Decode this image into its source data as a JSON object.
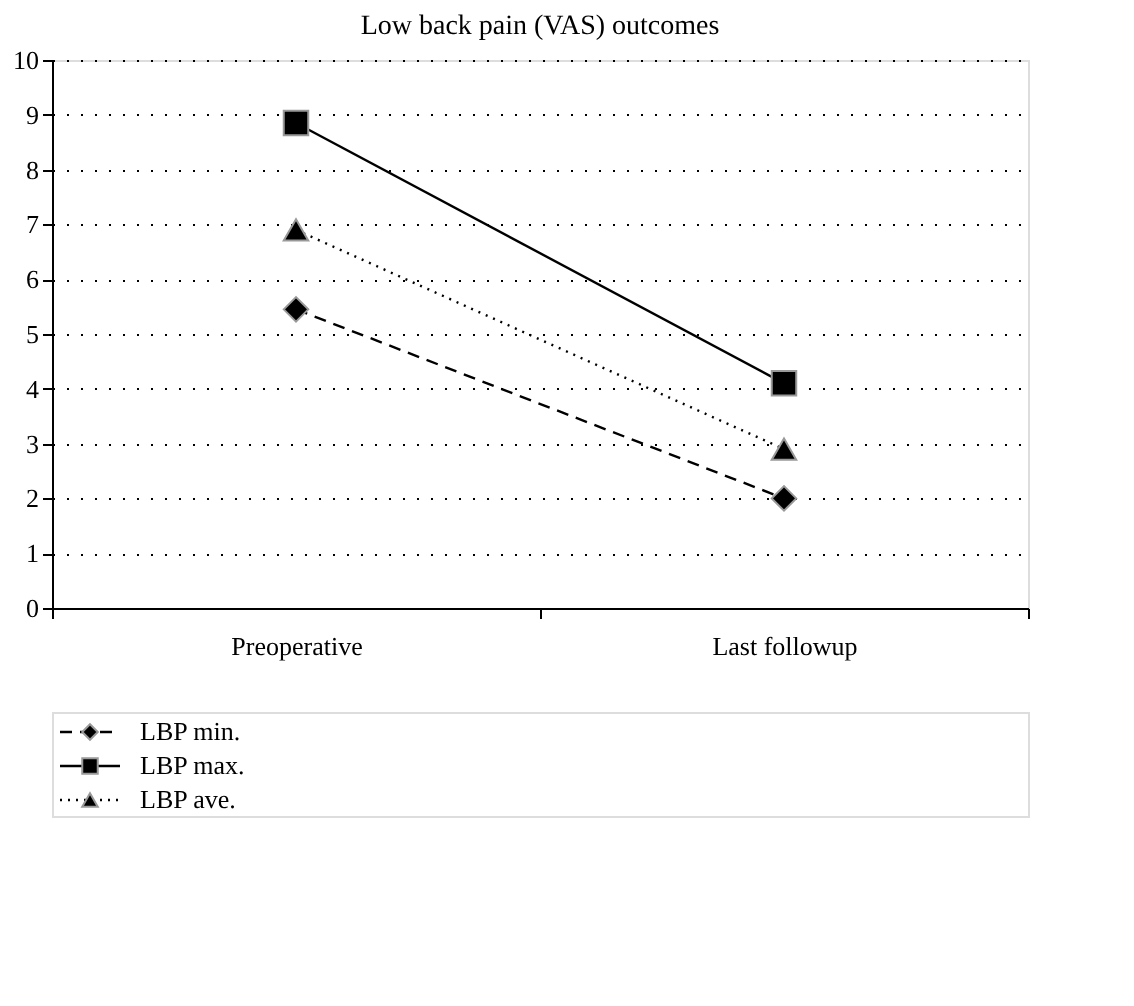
{
  "chart_data": {
    "type": "line",
    "title": "Low back pain (VAS) outcomes",
    "categories": [
      "Preoperative",
      "Last followup"
    ],
    "series": [
      {
        "name": "LBP min.",
        "color": "#000000",
        "values": [
          5.45,
          2.0
        ],
        "marker": "diamond",
        "line_style": "dashed"
      },
      {
        "name": "LBP max.",
        "color": "#000000",
        "values": [
          8.85,
          4.1
        ],
        "marker": "square",
        "line_style": "solid"
      },
      {
        "name": "LBP ave.",
        "color": "#000000",
        "values": [
          6.9,
          2.9
        ],
        "marker": "triangle",
        "line_style": "dotted"
      }
    ],
    "ylim": [
      0,
      10
    ],
    "yticks": [
      0,
      1,
      2,
      3,
      4,
      5,
      6,
      7,
      8,
      9,
      10
    ],
    "grid": "y",
    "legend": "bottom left"
  }
}
